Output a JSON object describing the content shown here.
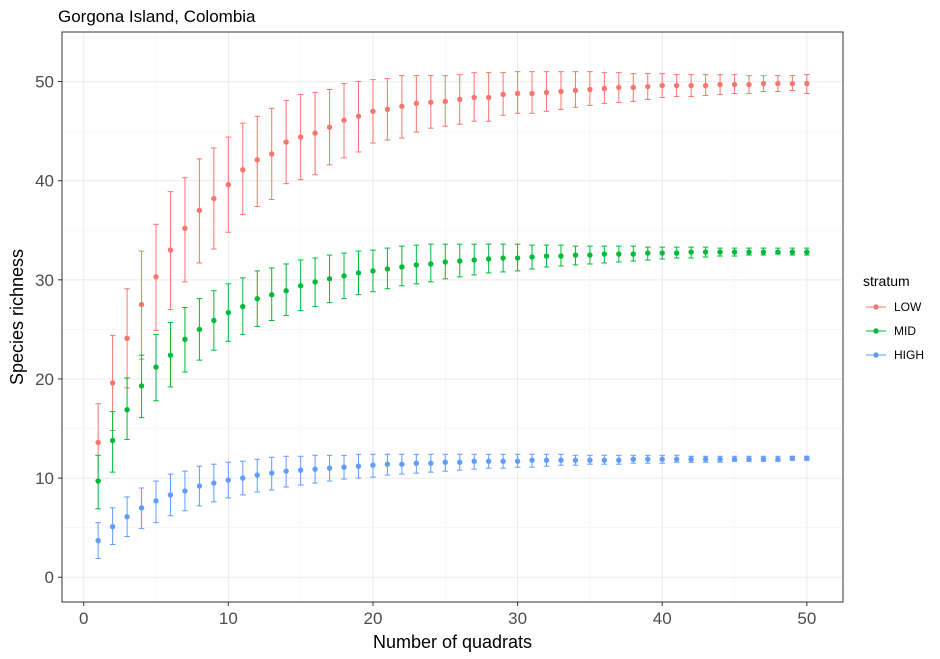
{
  "chart_data": {
    "type": "scatter",
    "title": "Gorgona Island, Colombia",
    "xlabel": "Number of quadrats",
    "ylabel": "Species richness",
    "xlim": [
      -1.5,
      52.5
    ],
    "ylim": [
      -2.5,
      55
    ],
    "x_ticks": [
      0,
      10,
      20,
      30,
      40,
      50
    ],
    "y_ticks": [
      0,
      10,
      20,
      30,
      40,
      50
    ],
    "grid": true,
    "legend": {
      "title": "stratum",
      "position": "right"
    },
    "error_bars": true,
    "x": [
      1,
      2,
      3,
      4,
      5,
      6,
      7,
      8,
      9,
      10,
      11,
      12,
      13,
      14,
      15,
      16,
      17,
      18,
      19,
      20,
      21,
      22,
      23,
      24,
      25,
      26,
      27,
      28,
      29,
      30,
      31,
      32,
      33,
      34,
      35,
      36,
      37,
      38,
      39,
      40,
      41,
      42,
      43,
      44,
      45,
      46,
      47,
      48,
      49,
      50
    ],
    "series": [
      {
        "name": "LOW",
        "color": "#F8766D",
        "values": [
          13.6,
          19.6,
          24.1,
          27.5,
          30.3,
          33.0,
          35.2,
          37.0,
          38.2,
          39.6,
          41.1,
          42.1,
          42.7,
          43.9,
          44.4,
          44.8,
          45.4,
          46.1,
          46.5,
          47.0,
          47.2,
          47.5,
          47.8,
          47.9,
          48.0,
          48.2,
          48.4,
          48.4,
          48.7,
          48.8,
          48.8,
          48.9,
          49.0,
          49.1,
          49.2,
          49.3,
          49.4,
          49.4,
          49.5,
          49.6,
          49.6,
          49.6,
          49.6,
          49.7,
          49.7,
          49.7,
          49.8,
          49.8,
          49.8,
          49.8
        ],
        "lower": [
          9.8,
          14.8,
          19.1,
          22.0,
          24.9,
          27.0,
          29.8,
          31.7,
          33.1,
          34.8,
          36.6,
          37.4,
          38.1,
          39.7,
          40.1,
          40.6,
          41.6,
          42.3,
          42.9,
          43.8,
          44.1,
          44.3,
          44.9,
          45.3,
          45.5,
          45.7,
          46.0,
          46.0,
          46.6,
          46.8,
          46.8,
          47.0,
          47.2,
          47.4,
          47.6,
          47.8,
          47.9,
          48.0,
          48.2,
          48.4,
          48.5,
          48.5,
          48.6,
          48.7,
          48.8,
          48.8,
          49.0,
          49.0,
          49.1,
          48.8
        ],
        "upper": [
          17.5,
          24.4,
          29.1,
          32.9,
          35.6,
          38.9,
          40.3,
          42.2,
          43.3,
          44.4,
          45.8,
          46.5,
          47.3,
          48.1,
          48.7,
          48.9,
          49.2,
          49.8,
          50.0,
          50.2,
          50.3,
          50.6,
          50.6,
          50.6,
          50.6,
          50.7,
          50.9,
          50.9,
          50.9,
          51.0,
          51.0,
          51.0,
          51.0,
          51.0,
          51.0,
          50.9,
          50.9,
          50.8,
          50.8,
          50.8,
          50.7,
          50.7,
          50.7,
          50.7,
          50.7,
          50.6,
          50.6,
          50.6,
          50.6,
          50.7
        ]
      },
      {
        "name": "MID",
        "color": "#00BA38",
        "values": [
          9.7,
          13.8,
          16.9,
          19.3,
          21.2,
          22.4,
          24.0,
          25.0,
          25.9,
          26.7,
          27.3,
          28.1,
          28.5,
          28.9,
          29.4,
          29.8,
          30.1,
          30.4,
          30.7,
          30.9,
          31.1,
          31.3,
          31.5,
          31.6,
          31.8,
          31.9,
          32.0,
          32.1,
          32.2,
          32.2,
          32.3,
          32.4,
          32.4,
          32.5,
          32.5,
          32.6,
          32.6,
          32.6,
          32.7,
          32.7,
          32.7,
          32.8,
          32.8,
          32.8,
          32.8,
          32.8,
          32.8,
          32.8,
          32.8,
          32.8
        ],
        "lower": [
          6.9,
          10.6,
          13.9,
          16.1,
          17.8,
          19.2,
          20.7,
          21.9,
          22.9,
          23.8,
          24.5,
          25.3,
          25.9,
          26.4,
          26.9,
          27.3,
          27.7,
          28.1,
          28.5,
          28.8,
          29.1,
          29.4,
          29.6,
          29.8,
          30.1,
          30.3,
          30.5,
          30.7,
          30.8,
          30.9,
          31.1,
          31.3,
          31.4,
          31.5,
          31.6,
          31.7,
          31.8,
          31.9,
          32.0,
          32.1,
          32.2,
          32.2,
          32.3,
          32.4,
          32.4,
          32.5,
          32.5,
          32.6,
          32.5,
          32.5
        ],
        "upper": [
          12.3,
          16.7,
          20.1,
          22.4,
          24.5,
          25.7,
          27.2,
          28.1,
          28.9,
          29.6,
          30.2,
          30.9,
          31.2,
          31.6,
          32.0,
          32.2,
          32.5,
          32.7,
          32.9,
          33.0,
          33.2,
          33.4,
          33.5,
          33.6,
          33.6,
          33.6,
          33.6,
          33.6,
          33.6,
          33.6,
          33.5,
          33.5,
          33.5,
          33.4,
          33.4,
          33.4,
          33.4,
          33.4,
          33.3,
          33.3,
          33.3,
          33.3,
          33.3,
          33.2,
          33.2,
          33.2,
          33.2,
          33.2,
          33.2,
          33.2
        ]
      },
      {
        "name": "HIGH",
        "color": "#619CFF",
        "values": [
          3.7,
          5.1,
          6.1,
          7.0,
          7.7,
          8.3,
          8.7,
          9.2,
          9.5,
          9.8,
          10.0,
          10.3,
          10.5,
          10.7,
          10.8,
          10.9,
          11.0,
          11.1,
          11.2,
          11.3,
          11.4,
          11.4,
          11.5,
          11.5,
          11.6,
          11.6,
          11.7,
          11.7,
          11.7,
          11.7,
          11.8,
          11.8,
          11.8,
          11.8,
          11.8,
          11.8,
          11.8,
          11.9,
          11.9,
          11.9,
          11.9,
          11.9,
          11.9,
          11.9,
          11.9,
          11.9,
          11.9,
          11.9,
          12.0,
          12.0
        ],
        "lower": [
          1.9,
          3.3,
          4.1,
          4.9,
          5.5,
          6.2,
          6.7,
          7.2,
          7.6,
          8.0,
          8.3,
          8.6,
          8.8,
          9.1,
          9.3,
          9.5,
          9.7,
          9.9,
          10.0,
          10.1,
          10.3,
          10.4,
          10.5,
          10.6,
          10.7,
          10.8,
          10.9,
          11.0,
          11.0,
          11.1,
          11.1,
          11.2,
          11.3,
          11.3,
          11.4,
          11.4,
          11.4,
          11.5,
          11.5,
          11.5,
          11.6,
          11.6,
          11.6,
          11.6,
          11.7,
          11.7,
          11.7,
          11.7,
          11.8,
          11.8
        ],
        "upper": [
          5.5,
          7.0,
          8.1,
          9.0,
          9.7,
          10.4,
          10.7,
          11.2,
          11.4,
          11.6,
          11.7,
          11.9,
          12.1,
          12.2,
          12.2,
          12.3,
          12.3,
          12.3,
          12.4,
          12.4,
          12.4,
          12.4,
          12.4,
          12.4,
          12.4,
          12.4,
          12.4,
          12.4,
          12.4,
          12.4,
          12.4,
          12.4,
          12.4,
          12.3,
          12.3,
          12.3,
          12.3,
          12.3,
          12.3,
          12.3,
          12.3,
          12.2,
          12.2,
          12.2,
          12.2,
          12.2,
          12.2,
          12.2,
          12.2,
          12.2
        ]
      }
    ]
  }
}
